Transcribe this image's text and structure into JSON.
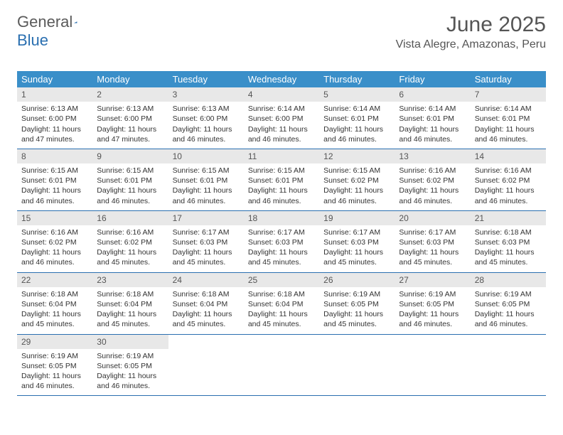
{
  "logo": {
    "text_general": "General",
    "text_blue": "Blue"
  },
  "title": "June 2025",
  "location": "Vista Alegre, Amazonas, Peru",
  "colors": {
    "header_bg": "#3a8fc9",
    "header_text": "#ffffff",
    "daynum_bg": "#e8e8e8",
    "daynum_text": "#555555",
    "body_text": "#333333",
    "rule": "#2a6fb0",
    "logo_accent": "#2a6fb0",
    "page_bg": "#ffffff"
  },
  "day_names": [
    "Sunday",
    "Monday",
    "Tuesday",
    "Wednesday",
    "Thursday",
    "Friday",
    "Saturday"
  ],
  "weeks": [
    [
      {
        "n": "1",
        "sunrise": "Sunrise: 6:13 AM",
        "sunset": "Sunset: 6:00 PM",
        "daylight": "Daylight: 11 hours and 47 minutes."
      },
      {
        "n": "2",
        "sunrise": "Sunrise: 6:13 AM",
        "sunset": "Sunset: 6:00 PM",
        "daylight": "Daylight: 11 hours and 47 minutes."
      },
      {
        "n": "3",
        "sunrise": "Sunrise: 6:13 AM",
        "sunset": "Sunset: 6:00 PM",
        "daylight": "Daylight: 11 hours and 46 minutes."
      },
      {
        "n": "4",
        "sunrise": "Sunrise: 6:14 AM",
        "sunset": "Sunset: 6:00 PM",
        "daylight": "Daylight: 11 hours and 46 minutes."
      },
      {
        "n": "5",
        "sunrise": "Sunrise: 6:14 AM",
        "sunset": "Sunset: 6:01 PM",
        "daylight": "Daylight: 11 hours and 46 minutes."
      },
      {
        "n": "6",
        "sunrise": "Sunrise: 6:14 AM",
        "sunset": "Sunset: 6:01 PM",
        "daylight": "Daylight: 11 hours and 46 minutes."
      },
      {
        "n": "7",
        "sunrise": "Sunrise: 6:14 AM",
        "sunset": "Sunset: 6:01 PM",
        "daylight": "Daylight: 11 hours and 46 minutes."
      }
    ],
    [
      {
        "n": "8",
        "sunrise": "Sunrise: 6:15 AM",
        "sunset": "Sunset: 6:01 PM",
        "daylight": "Daylight: 11 hours and 46 minutes."
      },
      {
        "n": "9",
        "sunrise": "Sunrise: 6:15 AM",
        "sunset": "Sunset: 6:01 PM",
        "daylight": "Daylight: 11 hours and 46 minutes."
      },
      {
        "n": "10",
        "sunrise": "Sunrise: 6:15 AM",
        "sunset": "Sunset: 6:01 PM",
        "daylight": "Daylight: 11 hours and 46 minutes."
      },
      {
        "n": "11",
        "sunrise": "Sunrise: 6:15 AM",
        "sunset": "Sunset: 6:01 PM",
        "daylight": "Daylight: 11 hours and 46 minutes."
      },
      {
        "n": "12",
        "sunrise": "Sunrise: 6:15 AM",
        "sunset": "Sunset: 6:02 PM",
        "daylight": "Daylight: 11 hours and 46 minutes."
      },
      {
        "n": "13",
        "sunrise": "Sunrise: 6:16 AM",
        "sunset": "Sunset: 6:02 PM",
        "daylight": "Daylight: 11 hours and 46 minutes."
      },
      {
        "n": "14",
        "sunrise": "Sunrise: 6:16 AM",
        "sunset": "Sunset: 6:02 PM",
        "daylight": "Daylight: 11 hours and 46 minutes."
      }
    ],
    [
      {
        "n": "15",
        "sunrise": "Sunrise: 6:16 AM",
        "sunset": "Sunset: 6:02 PM",
        "daylight": "Daylight: 11 hours and 46 minutes."
      },
      {
        "n": "16",
        "sunrise": "Sunrise: 6:16 AM",
        "sunset": "Sunset: 6:02 PM",
        "daylight": "Daylight: 11 hours and 45 minutes."
      },
      {
        "n": "17",
        "sunrise": "Sunrise: 6:17 AM",
        "sunset": "Sunset: 6:03 PM",
        "daylight": "Daylight: 11 hours and 45 minutes."
      },
      {
        "n": "18",
        "sunrise": "Sunrise: 6:17 AM",
        "sunset": "Sunset: 6:03 PM",
        "daylight": "Daylight: 11 hours and 45 minutes."
      },
      {
        "n": "19",
        "sunrise": "Sunrise: 6:17 AM",
        "sunset": "Sunset: 6:03 PM",
        "daylight": "Daylight: 11 hours and 45 minutes."
      },
      {
        "n": "20",
        "sunrise": "Sunrise: 6:17 AM",
        "sunset": "Sunset: 6:03 PM",
        "daylight": "Daylight: 11 hours and 45 minutes."
      },
      {
        "n": "21",
        "sunrise": "Sunrise: 6:18 AM",
        "sunset": "Sunset: 6:03 PM",
        "daylight": "Daylight: 11 hours and 45 minutes."
      }
    ],
    [
      {
        "n": "22",
        "sunrise": "Sunrise: 6:18 AM",
        "sunset": "Sunset: 6:04 PM",
        "daylight": "Daylight: 11 hours and 45 minutes."
      },
      {
        "n": "23",
        "sunrise": "Sunrise: 6:18 AM",
        "sunset": "Sunset: 6:04 PM",
        "daylight": "Daylight: 11 hours and 45 minutes."
      },
      {
        "n": "24",
        "sunrise": "Sunrise: 6:18 AM",
        "sunset": "Sunset: 6:04 PM",
        "daylight": "Daylight: 11 hours and 45 minutes."
      },
      {
        "n": "25",
        "sunrise": "Sunrise: 6:18 AM",
        "sunset": "Sunset: 6:04 PM",
        "daylight": "Daylight: 11 hours and 45 minutes."
      },
      {
        "n": "26",
        "sunrise": "Sunrise: 6:19 AM",
        "sunset": "Sunset: 6:05 PM",
        "daylight": "Daylight: 11 hours and 45 minutes."
      },
      {
        "n": "27",
        "sunrise": "Sunrise: 6:19 AM",
        "sunset": "Sunset: 6:05 PM",
        "daylight": "Daylight: 11 hours and 46 minutes."
      },
      {
        "n": "28",
        "sunrise": "Sunrise: 6:19 AM",
        "sunset": "Sunset: 6:05 PM",
        "daylight": "Daylight: 11 hours and 46 minutes."
      }
    ],
    [
      {
        "n": "29",
        "sunrise": "Sunrise: 6:19 AM",
        "sunset": "Sunset: 6:05 PM",
        "daylight": "Daylight: 11 hours and 46 minutes."
      },
      {
        "n": "30",
        "sunrise": "Sunrise: 6:19 AM",
        "sunset": "Sunset: 6:05 PM",
        "daylight": "Daylight: 11 hours and 46 minutes."
      },
      null,
      null,
      null,
      null,
      null
    ]
  ]
}
